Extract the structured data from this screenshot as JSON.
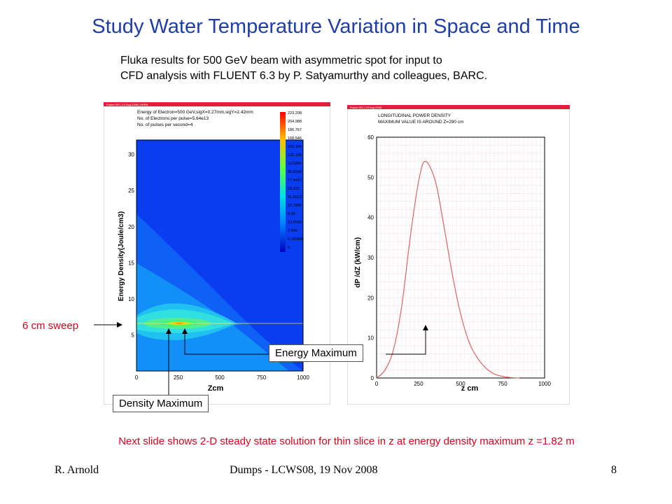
{
  "slide": {
    "title": "Study Water Temperature Variation in Space and Time",
    "subtitle_line1": "Fluka results for 500 GeV beam with asymmetric spot for input to",
    "subtitle_line2": "CFD analysis with FLUENT 6.3 by P. Satyamurthy and colleagues, BARC.",
    "sweep_label": "6 cm sweep",
    "energy_max_label": "Energy Maximum",
    "density_max_label": "Density Maximum",
    "note": "Next slide shows 2-D steady state solution for thin slice in z at energy density maximum z =1.82 m",
    "footer_left": "R. Arnold",
    "footer_center": "Dumps - LCWS08, 19 Nov 2008",
    "footer_right": "8"
  },
  "left_plot": {
    "header": "Frame 001 | 10 Aug 2008 | HEEN",
    "info_lines": [
      "Energy of Electron=500 GeV,sigX=0.27mm,sigY=2.42mm",
      "No. of Electrons per pulse=5.64e13",
      "No. of pulses per second=4"
    ],
    "xlabel": "Zcm",
    "ylabel": "Energy Density(Joule/cm3)",
    "x_ticks": [
      "0",
      "250",
      "500",
      "750",
      "1000"
    ],
    "y_ticks": [
      "5",
      "10",
      "15",
      "20",
      "25",
      "30"
    ],
    "colorbar_labels": [
      "223.208",
      "204.988",
      "186.767",
      "168.546",
      "150.326",
      "132.105",
      "113.884",
      "95.6634",
      "77.4427",
      "59.222",
      "41.0013",
      "22.7806",
      "4.56",
      "13.6599",
      "7.499",
      "0.150895",
      "0"
    ]
  },
  "right_plot": {
    "header": "Frame 001 | 10 Aug 2008",
    "info_lines": [
      "LONGITUDINAL POWER DENSITY",
      "MAXIMUM VALUE IS AROUND Z=290 cm"
    ],
    "xlabel": "z cm",
    "ylabel": "dP /dZ (kW/cm)",
    "x_ticks": [
      "0",
      "250",
      "500",
      "750",
      "1000"
    ],
    "y_ticks": [
      "0",
      "10",
      "20",
      "30",
      "40",
      "50",
      "60"
    ]
  },
  "chart_data": {
    "type": "line",
    "x": [
      0,
      50,
      100,
      150,
      200,
      250,
      290,
      350,
      400,
      450,
      500,
      550,
      600,
      650,
      700,
      750,
      800,
      850
    ],
    "series": [
      {
        "values": [
          0,
          2,
          7,
          18,
          35,
          49,
          54,
          49,
          38,
          26,
          16,
          9,
          5,
          2.5,
          1,
          0.4,
          0.1,
          0
        ]
      }
    ],
    "xlabel": "z cm",
    "ylabel": "dP /dZ (kW/cm)",
    "xlim": [
      0,
      1000
    ],
    "ylim": [
      0,
      60
    ],
    "grid": true,
    "line_color": "#e06060"
  }
}
